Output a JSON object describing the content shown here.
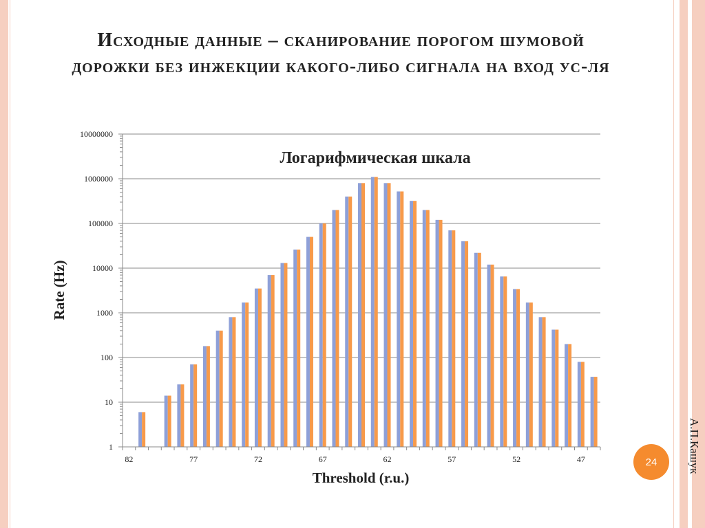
{
  "slide": {
    "title_line1": "Исходные данные – сканирование порогом шумовой",
    "title_line2": "дорожки без инжекции какого-либо сигнала на вход ус-ля",
    "page_number": "24",
    "author": "А.П.Кашук"
  },
  "colors": {
    "series_a": "#8ea0d8",
    "series_b": "#f79a4a",
    "frame": "#f6cfc0",
    "badge": "#f58b2e"
  },
  "chart_data": {
    "type": "bar",
    "title": "Логарифмическая шкала",
    "xlabel": "Threshold (r.u.)",
    "ylabel": "Rate (Hz)",
    "yscale": "log",
    "ylim": [
      1,
      10000000
    ],
    "grid": true,
    "yticks": [
      "1",
      "10",
      "100",
      "1000",
      "10000",
      "100000",
      "1000000",
      "10000000"
    ],
    "xticks": [
      "82",
      "77",
      "72",
      "67",
      "62",
      "57",
      "52",
      "47"
    ],
    "categories": [
      82,
      81,
      80,
      79,
      78,
      77,
      76,
      75,
      74,
      73,
      72,
      71,
      70,
      69,
      68,
      67,
      66,
      65,
      64,
      63,
      62,
      61,
      60,
      59,
      58,
      57,
      56,
      55,
      54,
      53,
      52,
      51,
      50,
      49,
      48,
      47,
      46
    ],
    "series": [
      {
        "values": [
          null,
          6,
          null,
          14,
          25,
          70,
          180,
          400,
          800,
          1700,
          3500,
          7000,
          13000,
          26000,
          50000,
          100000,
          200000,
          400000,
          800000,
          1100000,
          800000,
          520000,
          320000,
          200000,
          120000,
          70000,
          40000,
          22000,
          12000,
          6500,
          3400,
          1700,
          800,
          420,
          200,
          80,
          37
        ]
      },
      {
        "values": [
          null,
          6,
          null,
          14,
          25,
          70,
          180,
          400,
          800,
          1700,
          3500,
          7000,
          13000,
          26000,
          50000,
          100000,
          200000,
          400000,
          800000,
          1100000,
          800000,
          520000,
          320000,
          200000,
          120000,
          70000,
          40000,
          22000,
          12000,
          6500,
          3400,
          1700,
          800,
          420,
          200,
          80,
          37
        ]
      }
    ]
  }
}
